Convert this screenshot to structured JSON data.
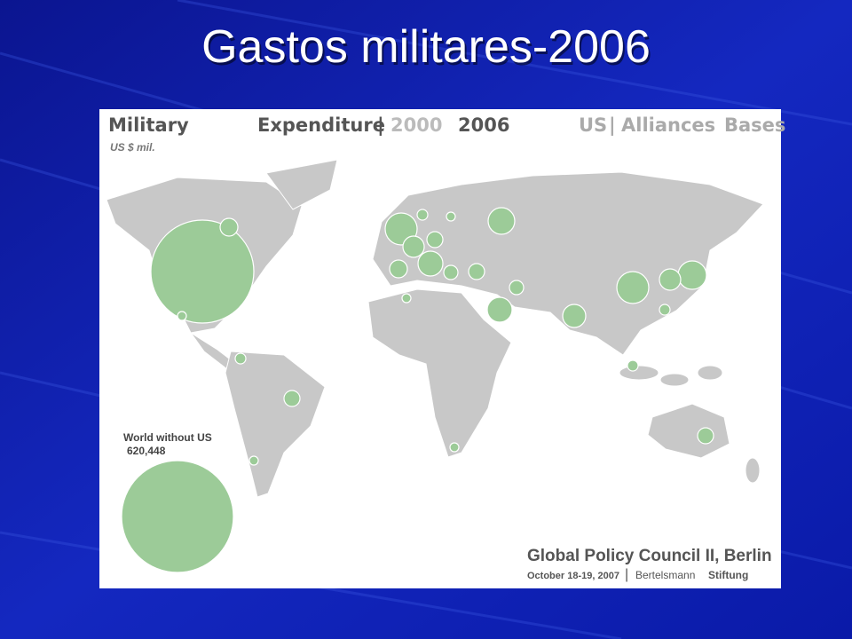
{
  "title": "Gastos militares-2006",
  "map": {
    "header": {
      "military": "Military",
      "unit": "US $ mil.",
      "expenditure": "Expenditure",
      "separator": "|",
      "year_2000": "2000",
      "year_2006": "2006",
      "us": "US",
      "separator_2": "|",
      "alliances": "Alliances",
      "bases": "Bases"
    },
    "inset": {
      "label": "World without US",
      "amount": "620,448"
    },
    "footer": {
      "council": "Global Policy Council II, Berlin",
      "date": "October 18-19, 2007",
      "separator": "|",
      "org_1": "Bertelsmann",
      "org_2": "Stiftung"
    }
  }
}
